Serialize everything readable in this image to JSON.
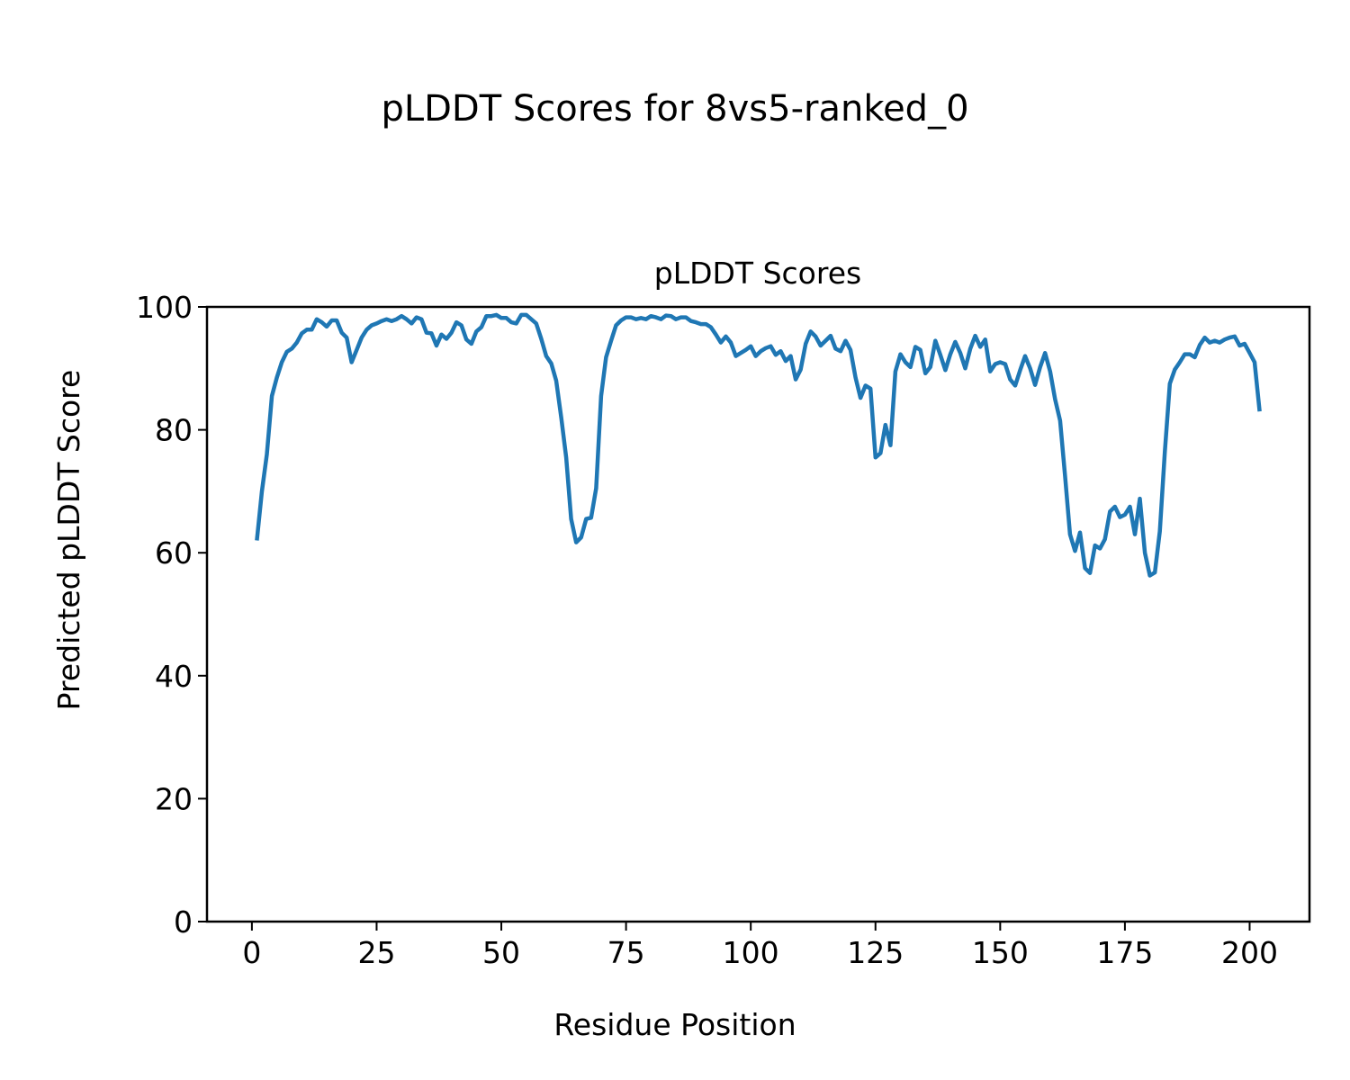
{
  "suptitle": "pLDDT Scores for 8vs5-ranked_0",
  "chart_data": {
    "type": "line",
    "title": "pLDDT Scores",
    "xlabel": "Residue Position",
    "ylabel": "Predicted pLDDT Score",
    "xlim": [
      -9,
      212
    ],
    "ylim": [
      0,
      100
    ],
    "xticks": [
      0,
      25,
      50,
      75,
      100,
      125,
      150,
      175,
      200
    ],
    "yticks": [
      0,
      20,
      40,
      60,
      80,
      100
    ],
    "grid": false,
    "series": [
      {
        "name": "pLDDT",
        "color": "#1f77b4",
        "x_start": 1,
        "values": [
          62,
          70,
          76,
          85.5,
          88.5,
          91,
          92.7,
          93.2,
          94.2,
          95.7,
          96.3,
          96.3,
          98,
          97.5,
          96.8,
          97.8,
          97.8,
          95.8,
          95,
          91,
          93,
          95,
          96.3,
          97,
          97.3,
          97.7,
          98,
          97.7,
          98,
          98.5,
          98,
          97.3,
          98.3,
          98,
          95.8,
          95.7,
          93.7,
          95.5,
          94.8,
          95.8,
          97.5,
          97,
          94.7,
          94,
          96,
          96.7,
          98.5,
          98.5,
          98.7,
          98.2,
          98.2,
          97.5,
          97.3,
          98.7,
          98.7,
          98,
          97.3,
          94.8,
          92,
          90.8,
          88,
          82,
          75.5,
          65.5,
          61.7,
          62.5,
          65.5,
          65.7,
          70.5,
          85.5,
          91.8,
          94.5,
          97,
          97.8,
          98.3,
          98.3,
          98,
          98.2,
          98,
          98.5,
          98.3,
          98,
          98.6,
          98.5,
          98,
          98.3,
          98.3,
          97.7,
          97.5,
          97.2,
          97.2,
          96.7,
          95.5,
          94.2,
          95.2,
          94.2,
          92,
          92.5,
          93,
          93.6,
          92,
          92.8,
          93.3,
          93.6,
          92.2,
          92.8,
          91.2,
          92,
          88.2,
          89.8,
          94,
          96,
          95.2,
          93.7,
          94.5,
          95.3,
          93.2,
          92.8,
          94.5,
          93,
          88.5,
          85.2,
          87.2,
          86.7,
          75.5,
          76.2,
          80.8,
          77.5,
          89.5,
          92.3,
          91,
          90.2,
          93.5,
          93,
          89.2,
          90.2,
          94.5,
          92.2,
          89.7,
          92.3,
          94.3,
          92.5,
          90,
          93.2,
          95.3,
          93.5,
          94.7,
          89.5,
          90.7,
          91,
          90.7,
          88.2,
          87.2,
          89.7,
          92,
          90,
          87.3,
          90.2,
          92.5,
          89.5,
          85,
          81.5,
          72.5,
          63,
          60.3,
          63.3,
          57.5,
          56.7,
          61.2,
          60.7,
          62.2,
          66.7,
          67.5,
          65.8,
          66.2,
          67.5,
          63,
          68.8,
          60,
          56.3,
          56.8,
          63.5,
          76.5,
          87.5,
          89.8,
          91,
          92.3,
          92.3,
          91.8,
          93.8,
          95,
          94.2,
          94.5,
          94.2,
          94.7,
          95,
          95.2,
          93.7,
          94,
          92.5,
          91,
          83
        ]
      }
    ]
  }
}
